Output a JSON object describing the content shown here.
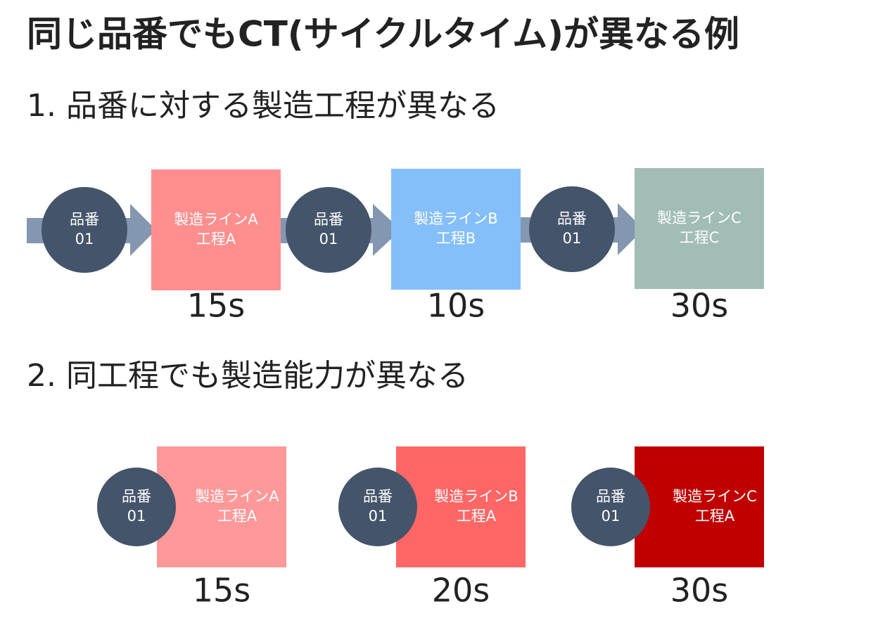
{
  "title": "同じ品番でもCT(サイクルタイム)が異なる例",
  "sections": [
    {
      "heading": "1. 品番に対する製造工程が異なる",
      "steps": [
        {
          "part": [
            "品番",
            "01"
          ],
          "line": [
            "製造ラインA",
            "工程A"
          ],
          "time": "15s"
        },
        {
          "part": [
            "品番",
            "01"
          ],
          "line": [
            "製造ラインB",
            "工程B"
          ],
          "time": "10s"
        },
        {
          "part": [
            "品番",
            "01"
          ],
          "line": [
            "製造ラインC",
            "工程C"
          ],
          "time": "30s"
        }
      ]
    },
    {
      "heading": "2. 同工程でも製造能力が異なる",
      "steps": [
        {
          "part": [
            "品番",
            "01"
          ],
          "line": [
            "製造ラインA",
            "工程A"
          ],
          "time": "15s"
        },
        {
          "part": [
            "品番",
            "01"
          ],
          "line": [
            "製造ラインB",
            "工程A"
          ],
          "time": "20s"
        },
        {
          "part": [
            "品番",
            "01"
          ],
          "line": [
            "製造ラインC",
            "工程A"
          ],
          "time": "30s"
        }
      ]
    }
  ]
}
